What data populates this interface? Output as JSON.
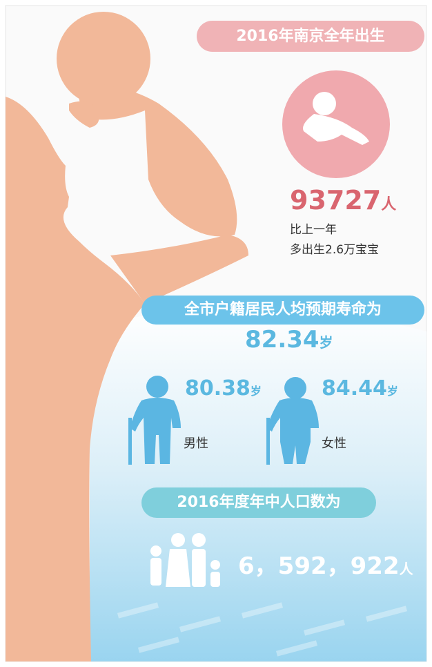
{
  "birth": {
    "title": "2016年南京全年出生",
    "number": "93727",
    "unit": "人",
    "note_line1": "比上一年",
    "note_line2": "多出生2.6万宝宝"
  },
  "life": {
    "title": "全市户籍居民人均预期寿命为",
    "overall": "82.34",
    "overall_unit": "岁",
    "male": {
      "value": "80.38",
      "unit": "岁",
      "label": "男性"
    },
    "female": {
      "value": "84.44",
      "unit": "岁",
      "label": "女性"
    }
  },
  "population": {
    "title": "2016年度年中人口数为",
    "number": "6，592，922",
    "unit": "人"
  }
}
